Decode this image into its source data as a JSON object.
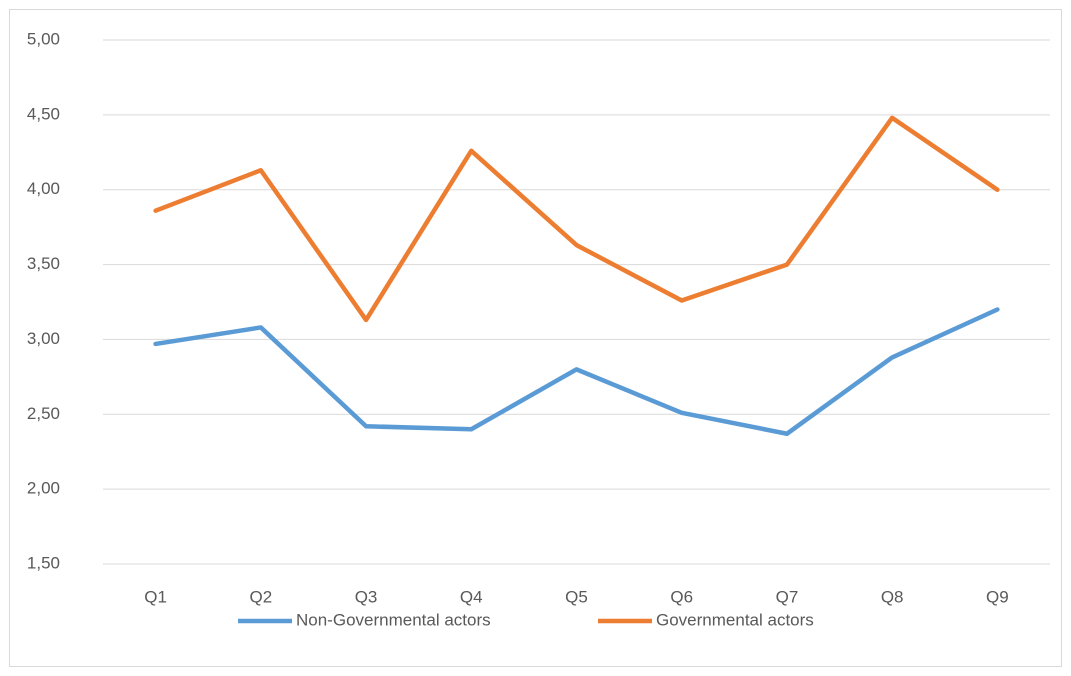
{
  "chart_data": {
    "type": "line",
    "categories": [
      "Q1",
      "Q2",
      "Q3",
      "Q4",
      "Q5",
      "Q6",
      "Q7",
      "Q8",
      "Q9"
    ],
    "series": [
      {
        "name": "Non-Governmental actors",
        "color": "#5b9bd5",
        "values": [
          2.97,
          3.08,
          2.42,
          2.4,
          2.8,
          2.51,
          2.37,
          2.88,
          3.2
        ]
      },
      {
        "name": "Governmental actors",
        "color": "#ed7d31",
        "values": [
          3.86,
          4.13,
          3.13,
          4.26,
          3.63,
          3.26,
          3.5,
          4.48,
          4.0
        ]
      }
    ],
    "ylim": [
      1.5,
      5.0
    ],
    "yticks": [
      {
        "value": 1.5,
        "label": "1,50"
      },
      {
        "value": 2.0,
        "label": "2,00"
      },
      {
        "value": 2.5,
        "label": "2,50"
      },
      {
        "value": 3.0,
        "label": "3,00"
      },
      {
        "value": 3.5,
        "label": "3,50"
      },
      {
        "value": 4.0,
        "label": "4,00"
      },
      {
        "value": 4.5,
        "label": "4,50"
      },
      {
        "value": 5.0,
        "label": "5,00"
      }
    ],
    "grid": true,
    "legend": "bottom"
  }
}
